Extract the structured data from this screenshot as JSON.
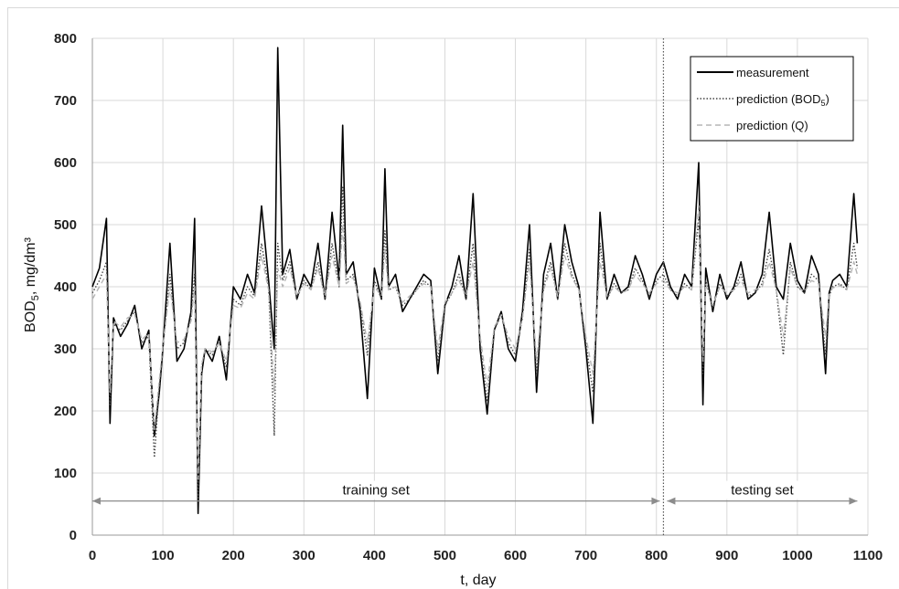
{
  "chart_data": {
    "type": "line",
    "xlabel": "t, day",
    "ylabel_main": "BOD",
    "ylabel_sub": "5",
    "ylabel_unit": ", mg/dm³",
    "xlim": [
      0,
      1100
    ],
    "ylim": [
      0,
      800
    ],
    "x_ticks": [
      0,
      100,
      200,
      300,
      400,
      500,
      600,
      700,
      800,
      900,
      1000,
      1100
    ],
    "y_ticks": [
      0,
      100,
      200,
      300,
      400,
      500,
      600,
      700,
      800
    ],
    "grid": "vertical and horizontal gridlines",
    "legend_position": "top-right",
    "split_day": 810,
    "annotations": [
      {
        "text": "training set",
        "x_start": 0,
        "x_end": 810,
        "y": 55
      },
      {
        "text": "testing set",
        "x_start": 810,
        "x_end": 1085,
        "y": 55
      }
    ],
    "series": [
      {
        "name": "measurement",
        "style": "solid",
        "color": "#000000",
        "x": [
          0,
          10,
          20,
          25,
          30,
          40,
          50,
          60,
          70,
          80,
          88,
          95,
          100,
          110,
          120,
          130,
          140,
          145,
          150,
          155,
          160,
          170,
          180,
          190,
          200,
          210,
          220,
          230,
          240,
          250,
          258,
          263,
          270,
          280,
          290,
          300,
          310,
          320,
          330,
          340,
          350,
          355,
          360,
          370,
          380,
          390,
          400,
          410,
          415,
          420,
          430,
          440,
          450,
          460,
          470,
          480,
          490,
          500,
          510,
          520,
          530,
          540,
          550,
          560,
          570,
          580,
          590,
          600,
          610,
          620,
          630,
          640,
          650,
          660,
          670,
          680,
          690,
          700,
          710,
          720,
          730,
          740,
          750,
          760,
          770,
          780,
          790,
          800,
          810,
          820,
          830,
          840,
          850,
          860,
          866,
          870,
          880,
          890,
          900,
          910,
          920,
          930,
          940,
          950,
          960,
          970,
          980,
          990,
          1000,
          1010,
          1020,
          1030,
          1040,
          1045,
          1050,
          1060,
          1070,
          1080,
          1085
        ],
        "values": [
          400,
          430,
          510,
          180,
          350,
          320,
          340,
          370,
          300,
          330,
          160,
          230,
          300,
          470,
          280,
          300,
          360,
          510,
          35,
          260,
          300,
          280,
          320,
          250,
          400,
          380,
          420,
          390,
          530,
          410,
          300,
          785,
          420,
          460,
          380,
          420,
          400,
          470,
          380,
          520,
          410,
          660,
          420,
          440,
          360,
          220,
          430,
          380,
          590,
          400,
          420,
          360,
          380,
          400,
          420,
          410,
          260,
          370,
          400,
          450,
          380,
          550,
          300,
          195,
          330,
          360,
          300,
          280,
          360,
          500,
          230,
          420,
          470,
          380,
          500,
          440,
          400,
          300,
          180,
          520,
          380,
          420,
          390,
          400,
          450,
          420,
          380,
          420,
          440,
          400,
          380,
          420,
          400,
          600,
          210,
          430,
          360,
          420,
          380,
          400,
          440,
          380,
          390,
          420,
          520,
          400,
          380,
          470,
          410,
          390,
          450,
          420,
          260,
          390,
          410,
          420,
          400,
          550,
          470
        ]
      },
      {
        "name": "prediction (BOD₅)",
        "legend_main": "prediction (BOD",
        "legend_sub": "5",
        "legend_end": ")",
        "style": "dotted",
        "color": "#444444",
        "x": [
          0,
          10,
          20,
          25,
          30,
          40,
          50,
          60,
          70,
          80,
          88,
          95,
          100,
          110,
          120,
          130,
          140,
          145,
          150,
          155,
          160,
          170,
          180,
          190,
          200,
          210,
          220,
          230,
          240,
          250,
          258,
          263,
          270,
          280,
          290,
          300,
          310,
          320,
          330,
          340,
          350,
          355,
          360,
          370,
          380,
          390,
          400,
          410,
          415,
          420,
          430,
          440,
          450,
          460,
          470,
          480,
          490,
          500,
          510,
          520,
          530,
          540,
          550,
          560,
          570,
          580,
          590,
          600,
          610,
          620,
          630,
          640,
          650,
          660,
          670,
          680,
          690,
          700,
          710,
          720,
          730,
          740,
          750,
          760,
          770,
          780,
          790,
          800,
          810,
          820,
          830,
          840,
          850,
          860,
          866,
          870,
          880,
          890,
          900,
          910,
          920,
          930,
          940,
          950,
          960,
          970,
          980,
          990,
          1000,
          1010,
          1020,
          1030,
          1040,
          1045,
          1050,
          1060,
          1070,
          1080,
          1085
        ],
        "values": [
          390,
          410,
          440,
          210,
          340,
          330,
          345,
          360,
          310,
          320,
          125,
          240,
          300,
          420,
          300,
          310,
          350,
          420,
          60,
          270,
          300,
          290,
          310,
          270,
          380,
          370,
          400,
          385,
          470,
          400,
          160,
          470,
          410,
          440,
          380,
          410,
          395,
          440,
          380,
          470,
          400,
          560,
          410,
          420,
          370,
          290,
          410,
          380,
          490,
          395,
          400,
          370,
          380,
          395,
          410,
          400,
          280,
          370,
          390,
          420,
          380,
          470,
          310,
          215,
          330,
          355,
          310,
          290,
          350,
          460,
          260,
          400,
          440,
          380,
          470,
          420,
          395,
          310,
          230,
          470,
          380,
          405,
          390,
          395,
          430,
          410,
          385,
          410,
          420,
          395,
          385,
          405,
          395,
          510,
          260,
          410,
          365,
          405,
          385,
          395,
          420,
          385,
          390,
          405,
          460,
          395,
          290,
          440,
          400,
          390,
          420,
          410,
          290,
          385,
          400,
          405,
          395,
          470,
          430
        ]
      },
      {
        "name": "prediction (Q)",
        "style": "dashed",
        "color": "#b5b5b5",
        "x": [
          0,
          10,
          20,
          25,
          30,
          40,
          50,
          60,
          70,
          80,
          88,
          95,
          100,
          110,
          120,
          130,
          140,
          145,
          150,
          155,
          160,
          170,
          180,
          190,
          200,
          210,
          220,
          230,
          240,
          250,
          258,
          263,
          270,
          280,
          290,
          300,
          310,
          320,
          330,
          340,
          350,
          355,
          360,
          370,
          380,
          390,
          400,
          410,
          415,
          420,
          430,
          440,
          450,
          460,
          470,
          480,
          490,
          500,
          510,
          520,
          530,
          540,
          550,
          560,
          570,
          580,
          590,
          600,
          610,
          620,
          630,
          640,
          650,
          660,
          670,
          680,
          690,
          700,
          710,
          720,
          730,
          740,
          750,
          760,
          770,
          780,
          790,
          800,
          810,
          820,
          830,
          840,
          850,
          860,
          866,
          870,
          880,
          890,
          900,
          910,
          920,
          930,
          940,
          950,
          960,
          970,
          980,
          990,
          1000,
          1010,
          1020,
          1030,
          1040,
          1045,
          1050,
          1060,
          1070,
          1080,
          1085
        ],
        "values": [
          380,
          400,
          420,
          230,
          345,
          335,
          350,
          355,
          315,
          325,
          170,
          250,
          305,
          400,
          310,
          315,
          345,
          400,
          90,
          275,
          300,
          295,
          310,
          280,
          370,
          365,
          390,
          380,
          450,
          395,
          230,
          430,
          400,
          430,
          385,
          405,
          395,
          430,
          385,
          450,
          400,
          500,
          405,
          415,
          375,
          310,
          400,
          385,
          460,
          395,
          400,
          375,
          385,
          395,
          405,
          400,
          300,
          375,
          390,
          410,
          385,
          440,
          320,
          240,
          335,
          355,
          320,
          300,
          350,
          440,
          280,
          395,
          430,
          385,
          450,
          415,
          395,
          320,
          260,
          440,
          385,
          400,
          390,
          395,
          420,
          405,
          390,
          405,
          410,
          395,
          390,
          400,
          395,
          530,
          280,
          405,
          370,
          400,
          390,
          395,
          410,
          390,
          395,
          400,
          440,
          395,
          320,
          430,
          400,
          392,
          410,
          405,
          320,
          390,
          398,
          402,
          395,
          440,
          420
        ]
      }
    ]
  }
}
